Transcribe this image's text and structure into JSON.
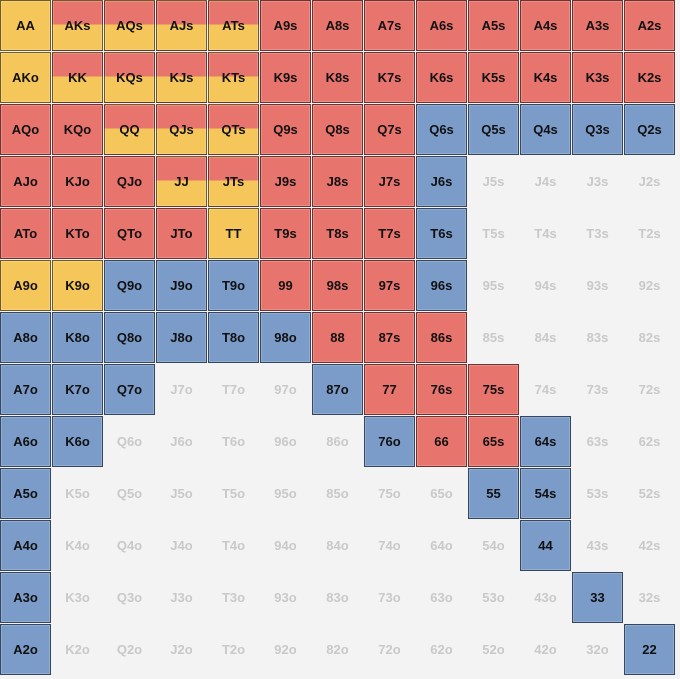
{
  "chart": {
    "colors": {
      "red": "#e8746e",
      "yellow": "#f5c75a",
      "blue": "#7b9bc9",
      "empty_text": "#c9c9c9"
    },
    "rows": [
      [
        {
          "hand": "AA",
          "color": "yellow"
        },
        {
          "hand": "AKs",
          "color": "red-yellow"
        },
        {
          "hand": "AQs",
          "color": "red-yellow"
        },
        {
          "hand": "AJs",
          "color": "red-yellow"
        },
        {
          "hand": "ATs",
          "color": "red-yellow"
        },
        {
          "hand": "A9s",
          "color": "red"
        },
        {
          "hand": "A8s",
          "color": "red"
        },
        {
          "hand": "A7s",
          "color": "red"
        },
        {
          "hand": "A6s",
          "color": "red"
        },
        {
          "hand": "A5s",
          "color": "red"
        },
        {
          "hand": "A4s",
          "color": "red"
        },
        {
          "hand": "A3s",
          "color": "red"
        },
        {
          "hand": "A2s",
          "color": "red"
        }
      ],
      [
        {
          "hand": "AKo",
          "color": "yellow"
        },
        {
          "hand": "KK",
          "color": "red-yellow"
        },
        {
          "hand": "KQs",
          "color": "red-yellow"
        },
        {
          "hand": "KJs",
          "color": "red-yellow"
        },
        {
          "hand": "KTs",
          "color": "red-yellow"
        },
        {
          "hand": "K9s",
          "color": "red"
        },
        {
          "hand": "K8s",
          "color": "red"
        },
        {
          "hand": "K7s",
          "color": "red"
        },
        {
          "hand": "K6s",
          "color": "red"
        },
        {
          "hand": "K5s",
          "color": "red"
        },
        {
          "hand": "K4s",
          "color": "red"
        },
        {
          "hand": "K3s",
          "color": "red"
        },
        {
          "hand": "K2s",
          "color": "red"
        }
      ],
      [
        {
          "hand": "AQo",
          "color": "red"
        },
        {
          "hand": "KQo",
          "color": "red"
        },
        {
          "hand": "QQ",
          "color": "red-yellow"
        },
        {
          "hand": "QJs",
          "color": "red-yellow"
        },
        {
          "hand": "QTs",
          "color": "red-yellow"
        },
        {
          "hand": "Q9s",
          "color": "red"
        },
        {
          "hand": "Q8s",
          "color": "red"
        },
        {
          "hand": "Q7s",
          "color": "red"
        },
        {
          "hand": "Q6s",
          "color": "blue"
        },
        {
          "hand": "Q5s",
          "color": "blue"
        },
        {
          "hand": "Q4s",
          "color": "blue"
        },
        {
          "hand": "Q3s",
          "color": "blue"
        },
        {
          "hand": "Q2s",
          "color": "blue"
        }
      ],
      [
        {
          "hand": "AJo",
          "color": "red"
        },
        {
          "hand": "KJo",
          "color": "red"
        },
        {
          "hand": "QJo",
          "color": "red"
        },
        {
          "hand": "JJ",
          "color": "red-yellow"
        },
        {
          "hand": "JTs",
          "color": "red-yellow"
        },
        {
          "hand": "J9s",
          "color": "red"
        },
        {
          "hand": "J8s",
          "color": "red"
        },
        {
          "hand": "J7s",
          "color": "red"
        },
        {
          "hand": "J6s",
          "color": "blue"
        },
        {
          "hand": "J5s",
          "color": "empty"
        },
        {
          "hand": "J4s",
          "color": "empty"
        },
        {
          "hand": "J3s",
          "color": "empty"
        },
        {
          "hand": "J2s",
          "color": "empty"
        }
      ],
      [
        {
          "hand": "ATo",
          "color": "red"
        },
        {
          "hand": "KTo",
          "color": "red"
        },
        {
          "hand": "QTo",
          "color": "red"
        },
        {
          "hand": "JTo",
          "color": "red"
        },
        {
          "hand": "TT",
          "color": "yellow"
        },
        {
          "hand": "T9s",
          "color": "red"
        },
        {
          "hand": "T8s",
          "color": "red"
        },
        {
          "hand": "T7s",
          "color": "red"
        },
        {
          "hand": "T6s",
          "color": "blue"
        },
        {
          "hand": "T5s",
          "color": "empty"
        },
        {
          "hand": "T4s",
          "color": "empty"
        },
        {
          "hand": "T3s",
          "color": "empty"
        },
        {
          "hand": "T2s",
          "color": "empty"
        }
      ],
      [
        {
          "hand": "A9o",
          "color": "yellow"
        },
        {
          "hand": "K9o",
          "color": "yellow"
        },
        {
          "hand": "Q9o",
          "color": "blue"
        },
        {
          "hand": "J9o",
          "color": "blue"
        },
        {
          "hand": "T9o",
          "color": "blue"
        },
        {
          "hand": "99",
          "color": "red"
        },
        {
          "hand": "98s",
          "color": "red"
        },
        {
          "hand": "97s",
          "color": "red"
        },
        {
          "hand": "96s",
          "color": "blue"
        },
        {
          "hand": "95s",
          "color": "empty"
        },
        {
          "hand": "94s",
          "color": "empty"
        },
        {
          "hand": "93s",
          "color": "empty"
        },
        {
          "hand": "92s",
          "color": "empty"
        }
      ],
      [
        {
          "hand": "A8o",
          "color": "blue"
        },
        {
          "hand": "K8o",
          "color": "blue"
        },
        {
          "hand": "Q8o",
          "color": "blue"
        },
        {
          "hand": "J8o",
          "color": "blue"
        },
        {
          "hand": "T8o",
          "color": "blue"
        },
        {
          "hand": "98o",
          "color": "blue"
        },
        {
          "hand": "88",
          "color": "red"
        },
        {
          "hand": "87s",
          "color": "red"
        },
        {
          "hand": "86s",
          "color": "red"
        },
        {
          "hand": "85s",
          "color": "empty"
        },
        {
          "hand": "84s",
          "color": "empty"
        },
        {
          "hand": "83s",
          "color": "empty"
        },
        {
          "hand": "82s",
          "color": "empty"
        }
      ],
      [
        {
          "hand": "A7o",
          "color": "blue"
        },
        {
          "hand": "K7o",
          "color": "blue"
        },
        {
          "hand": "Q7o",
          "color": "blue"
        },
        {
          "hand": "J7o",
          "color": "empty"
        },
        {
          "hand": "T7o",
          "color": "empty"
        },
        {
          "hand": "97o",
          "color": "empty"
        },
        {
          "hand": "87o",
          "color": "blue"
        },
        {
          "hand": "77",
          "color": "red"
        },
        {
          "hand": "76s",
          "color": "red"
        },
        {
          "hand": "75s",
          "color": "red"
        },
        {
          "hand": "74s",
          "color": "empty"
        },
        {
          "hand": "73s",
          "color": "empty"
        },
        {
          "hand": "72s",
          "color": "empty"
        }
      ],
      [
        {
          "hand": "A6o",
          "color": "blue"
        },
        {
          "hand": "K6o",
          "color": "blue"
        },
        {
          "hand": "Q6o",
          "color": "empty"
        },
        {
          "hand": "J6o",
          "color": "empty"
        },
        {
          "hand": "T6o",
          "color": "empty"
        },
        {
          "hand": "96o",
          "color": "empty"
        },
        {
          "hand": "86o",
          "color": "empty"
        },
        {
          "hand": "76o",
          "color": "blue"
        },
        {
          "hand": "66",
          "color": "red"
        },
        {
          "hand": "65s",
          "color": "red"
        },
        {
          "hand": "64s",
          "color": "blue"
        },
        {
          "hand": "63s",
          "color": "empty"
        },
        {
          "hand": "62s",
          "color": "empty"
        }
      ],
      [
        {
          "hand": "A5o",
          "color": "blue"
        },
        {
          "hand": "K5o",
          "color": "empty"
        },
        {
          "hand": "Q5o",
          "color": "empty"
        },
        {
          "hand": "J5o",
          "color": "empty"
        },
        {
          "hand": "T5o",
          "color": "empty"
        },
        {
          "hand": "95o",
          "color": "empty"
        },
        {
          "hand": "85o",
          "color": "empty"
        },
        {
          "hand": "75o",
          "color": "empty"
        },
        {
          "hand": "65o",
          "color": "empty"
        },
        {
          "hand": "55",
          "color": "blue"
        },
        {
          "hand": "54s",
          "color": "blue"
        },
        {
          "hand": "53s",
          "color": "empty"
        },
        {
          "hand": "52s",
          "color": "empty"
        }
      ],
      [
        {
          "hand": "A4o",
          "color": "blue"
        },
        {
          "hand": "K4o",
          "color": "empty"
        },
        {
          "hand": "Q4o",
          "color": "empty"
        },
        {
          "hand": "J4o",
          "color": "empty"
        },
        {
          "hand": "T4o",
          "color": "empty"
        },
        {
          "hand": "94o",
          "color": "empty"
        },
        {
          "hand": "84o",
          "color": "empty"
        },
        {
          "hand": "74o",
          "color": "empty"
        },
        {
          "hand": "64o",
          "color": "empty"
        },
        {
          "hand": "54o",
          "color": "empty"
        },
        {
          "hand": "44",
          "color": "blue"
        },
        {
          "hand": "43s",
          "color": "empty"
        },
        {
          "hand": "42s",
          "color": "empty"
        }
      ],
      [
        {
          "hand": "A3o",
          "color": "blue"
        },
        {
          "hand": "K3o",
          "color": "empty"
        },
        {
          "hand": "Q3o",
          "color": "empty"
        },
        {
          "hand": "J3o",
          "color": "empty"
        },
        {
          "hand": "T3o",
          "color": "empty"
        },
        {
          "hand": "93o",
          "color": "empty"
        },
        {
          "hand": "83o",
          "color": "empty"
        },
        {
          "hand": "73o",
          "color": "empty"
        },
        {
          "hand": "63o",
          "color": "empty"
        },
        {
          "hand": "53o",
          "color": "empty"
        },
        {
          "hand": "43o",
          "color": "empty"
        },
        {
          "hand": "33",
          "color": "blue"
        },
        {
          "hand": "32s",
          "color": "empty"
        }
      ],
      [
        {
          "hand": "A2o",
          "color": "blue"
        },
        {
          "hand": "K2o",
          "color": "empty"
        },
        {
          "hand": "Q2o",
          "color": "empty"
        },
        {
          "hand": "J2o",
          "color": "empty"
        },
        {
          "hand": "T2o",
          "color": "empty"
        },
        {
          "hand": "92o",
          "color": "empty"
        },
        {
          "hand": "82o",
          "color": "empty"
        },
        {
          "hand": "72o",
          "color": "empty"
        },
        {
          "hand": "62o",
          "color": "empty"
        },
        {
          "hand": "52o",
          "color": "empty"
        },
        {
          "hand": "42o",
          "color": "empty"
        },
        {
          "hand": "32o",
          "color": "empty"
        },
        {
          "hand": "22",
          "color": "blue"
        }
      ]
    ]
  }
}
